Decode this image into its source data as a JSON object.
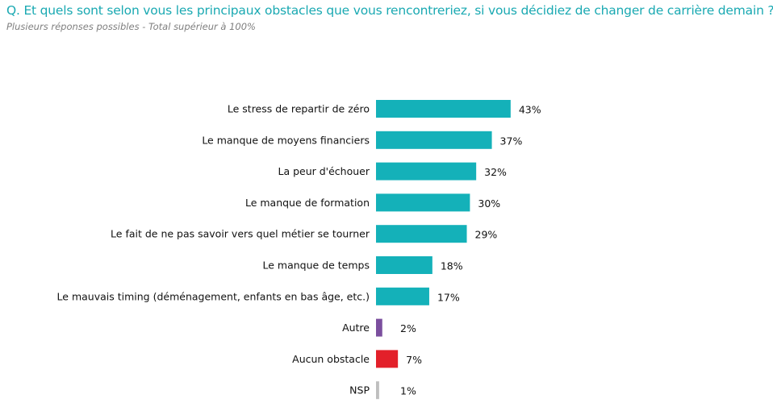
{
  "chart_data": {
    "type": "bar",
    "orientation": "horizontal",
    "title": "Q. Et quels sont selon vous les principaux obstacles que vous rencontreriez, si vous décidiez de changer de carrière demain ?",
    "subtitle": "Plusieurs réponses possibles - Total supérieur à 100%",
    "categories": [
      "Le stress de repartir de zéro",
      "Le manque de moyens financiers",
      "La peur d'échouer",
      "Le manque de formation",
      "Le fait de ne pas savoir vers quel métier se tourner",
      "Le manque de temps",
      "Le mauvais timing (déménagement, enfants en bas âge, etc.)",
      "Autre",
      "Aucun obstacle",
      "NSP"
    ],
    "values": [
      43,
      37,
      32,
      30,
      29,
      18,
      17,
      2,
      7,
      1
    ],
    "value_labels": [
      "43%",
      "37%",
      "32%",
      "30%",
      "29%",
      "18%",
      "17%",
      "2%",
      "7%",
      "1%"
    ],
    "colors": [
      "#14b1b9",
      "#14b1b9",
      "#14b1b9",
      "#14b1b9",
      "#14b1b9",
      "#14b1b9",
      "#14b1b9",
      "#7b4f9e",
      "#e3202a",
      "#bfbfbf"
    ],
    "unit": "%",
    "xlim": [
      0,
      100
    ],
    "grid": false,
    "legend": "none"
  }
}
